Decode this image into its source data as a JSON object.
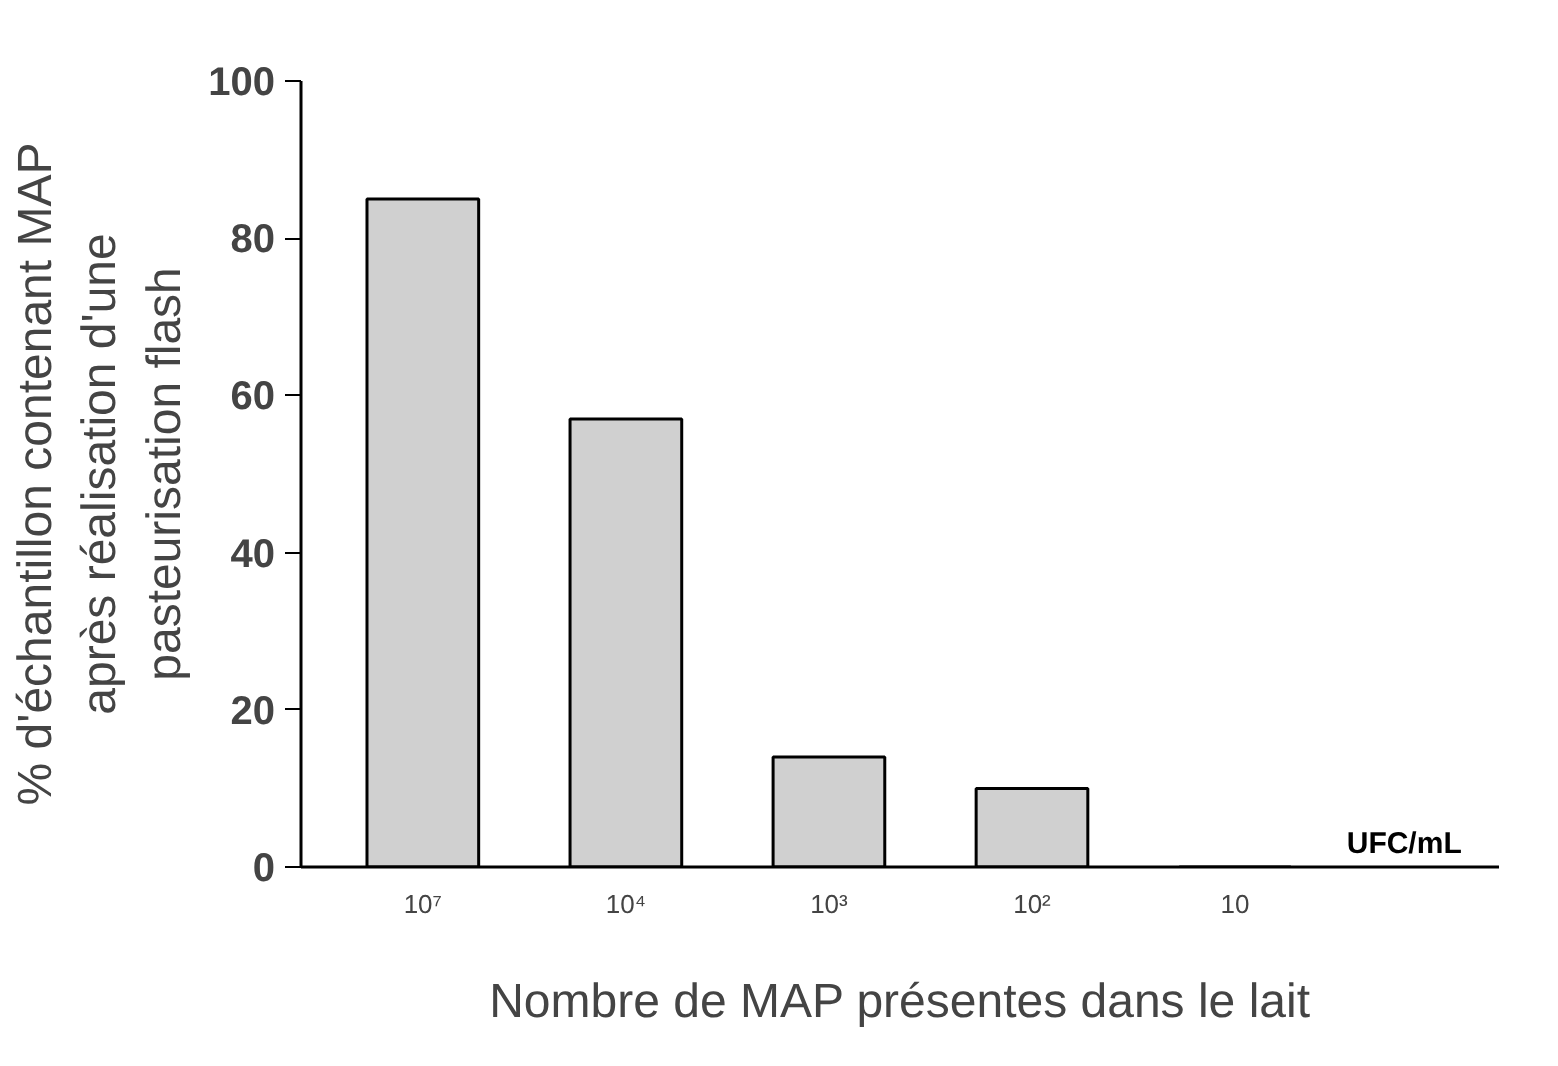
{
  "chart_data": {
    "type": "bar",
    "categories": [
      "10⁷",
      "10⁴",
      "10³",
      "10²",
      "10"
    ],
    "values": [
      85,
      57,
      14,
      10,
      0
    ],
    "color": "#d0d0d0",
    "xlabel": "Nombre de MAP présentes dans le lait",
    "ylabel": "% d'échantillon contenant MAP\naprès réalisation d'une\npasteurisation flash",
    "annotations": [
      "UFC/mL"
    ],
    "ylim": [
      0,
      100
    ],
    "yticks": [
      0,
      20,
      40,
      60,
      80,
      100
    ],
    "grid": false
  }
}
